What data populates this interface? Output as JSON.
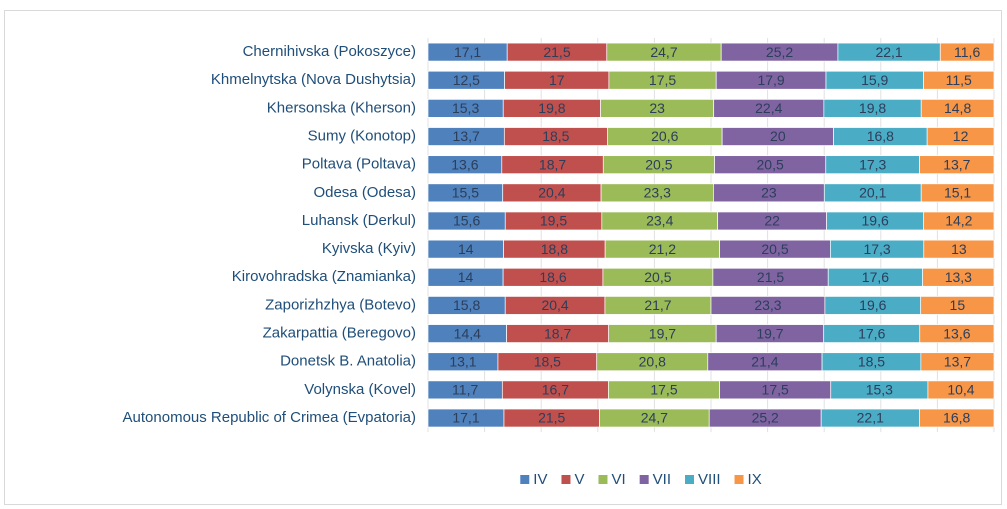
{
  "chart_data": {
    "type": "bar",
    "orientation": "horizontal",
    "stacking": "percent",
    "categories": [
      "Chernihivska (Pokoszyce)",
      "Khmelnytska (Nova Dushytsia)",
      "Khersonska (Kherson)",
      "Sumy (Konotop)",
      "Poltava (Poltava)",
      "Odesa (Odesa)",
      "Luhansk (Derkul)",
      "Kyivska (Kyiv)",
      "Kirovohradska (Znamianka)",
      "Zaporizhzhya (Botevo)",
      "Zakarpattia (Beregovo)",
      "Donetsk B. Anatolia)",
      "Volynska (Kovel)",
      "Autonomous Republic of Crimea (Evpatoria)"
    ],
    "series": [
      {
        "name": "IV",
        "color": "#4f81bd",
        "values": [
          17.1,
          12.5,
          15.3,
          13.7,
          13.6,
          15.5,
          15.6,
          14,
          14,
          15.8,
          14.4,
          13.1,
          11.7,
          17.1
        ],
        "value_labels": [
          "17,1",
          "12,5",
          "15,3",
          "13,7",
          "13,6",
          "15,5",
          "15,6",
          "14",
          "14",
          "15,8",
          "14,4",
          "13,1",
          "11,7",
          "17,1"
        ]
      },
      {
        "name": "V",
        "color": "#c0504d",
        "values": [
          21.5,
          17,
          19.8,
          18.5,
          18.7,
          20.4,
          19.5,
          18.8,
          18.6,
          20.4,
          18.7,
          18.5,
          16.7,
          21.5
        ],
        "value_labels": [
          "21,5",
          "17",
          "19,8",
          "18,5",
          "18,7",
          "20,4",
          "19,5",
          "18,8",
          "18,6",
          "20,4",
          "18,7",
          "18,5",
          "16,7",
          "21,5"
        ]
      },
      {
        "name": "VI",
        "color": "#9bbb59",
        "values": [
          24.7,
          17.5,
          23,
          20.6,
          20.5,
          23.3,
          23.4,
          21.2,
          20.5,
          21.7,
          19.7,
          20.8,
          17.5,
          24.7
        ],
        "value_labels": [
          "24,7",
          "17,5",
          "23",
          "20,6",
          "20,5",
          "23,3",
          "23,4",
          "21,2",
          "20,5",
          "21,7",
          "19,7",
          "20,8",
          "17,5",
          "24,7"
        ]
      },
      {
        "name": "VII",
        "color": "#8064a2",
        "values": [
          25.2,
          17.9,
          22.4,
          20,
          20.5,
          23,
          22,
          20.5,
          21.5,
          23.3,
          19.7,
          21.4,
          17.5,
          25.2
        ],
        "value_labels": [
          "25,2",
          "17,9",
          "22,4",
          "20",
          "20,5",
          "23",
          "22",
          "20,5",
          "21,5",
          "23,3",
          "19,7",
          "21,4",
          "17,5",
          "25,2"
        ]
      },
      {
        "name": "VIII",
        "color": "#4bacc6",
        "values": [
          22.1,
          15.9,
          19.8,
          16.8,
          17.3,
          20.1,
          19.6,
          17.3,
          17.6,
          19.6,
          17.6,
          18.5,
          15.3,
          22.1
        ],
        "value_labels": [
          "22,1",
          "15,9",
          "19,8",
          "16,8",
          "17,3",
          "20,1",
          "19,6",
          "17,3",
          "17,6",
          "19,6",
          "17,6",
          "18,5",
          "15,3",
          "22,1"
        ]
      },
      {
        "name": "IX",
        "color": "#f79646",
        "values": [
          11.6,
          11.5,
          14.8,
          12,
          13.7,
          15.1,
          14.2,
          13,
          13.3,
          15,
          13.6,
          13.7,
          10.4,
          16.8
        ],
        "value_labels": [
          "11,6",
          "11,5",
          "14,8",
          "12",
          "13,7",
          "15,1",
          "14,2",
          "13",
          "13,3",
          "15",
          "13,6",
          "13,7",
          "10,4",
          "16,8"
        ]
      }
    ],
    "xlim": [
      0,
      100
    ],
    "xticks": [
      0,
      10,
      20,
      30,
      40,
      50,
      60,
      70,
      80,
      90,
      100
    ],
    "grid": true,
    "legend": "bottom"
  }
}
